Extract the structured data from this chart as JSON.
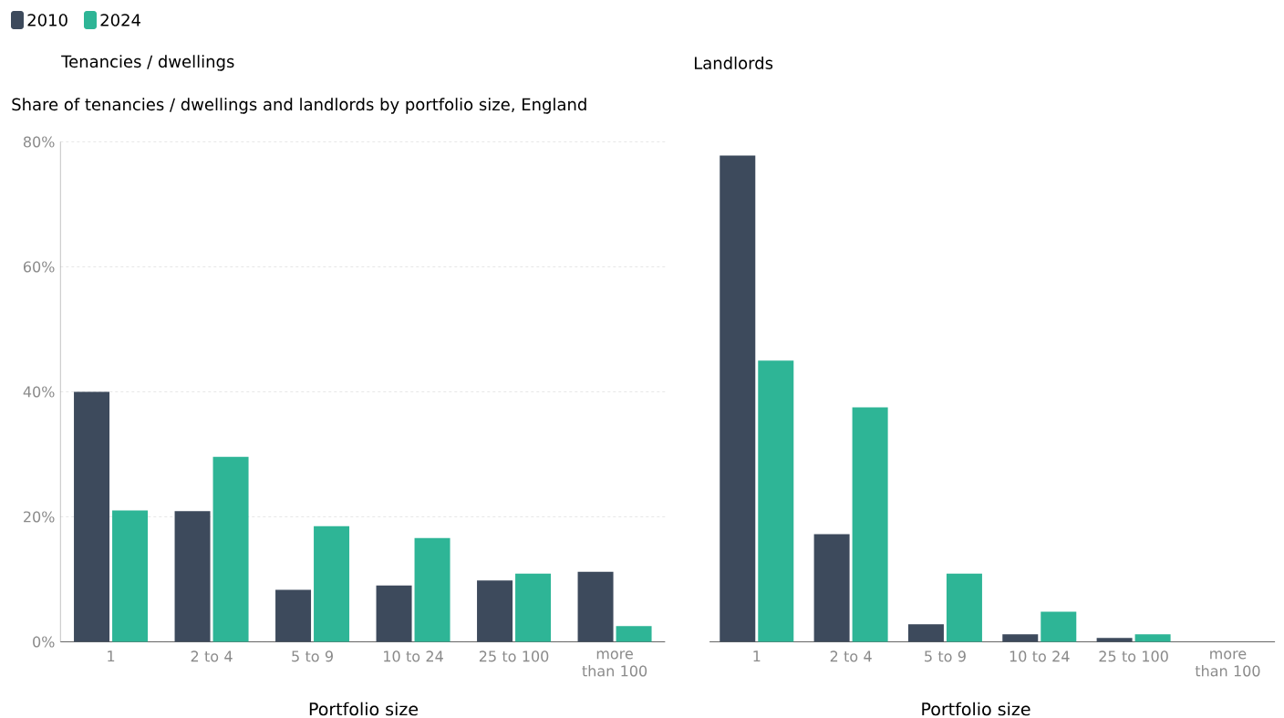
{
  "chart_data": [
    {
      "type": "bar",
      "title": "Tenancies / dwellings",
      "subtitle": "Share of tenancies / dwellings and landlords by portfolio size, England",
      "xlabel": "Portfolio size",
      "categories": [
        "1",
        "2 to 4",
        "5 to 9",
        "10 to 24",
        "25 to 100",
        "more than 100"
      ],
      "series": [
        {
          "name": "2010",
          "color": "#3d4a5c",
          "values": [
            40.0,
            20.9,
            8.3,
            9.0,
            9.8,
            11.2
          ]
        },
        {
          "name": "2024",
          "color": "#2eb596",
          "values": [
            21.0,
            29.6,
            18.5,
            16.6,
            10.9,
            2.5
          ]
        }
      ],
      "ylim": [
        0,
        80
      ],
      "yticks": [
        {
          "value": 0,
          "label": "0%"
        },
        {
          "value": 20,
          "label": "20%"
        },
        {
          "value": 40,
          "label": "40%"
        },
        {
          "value": 60,
          "label": "60%"
        },
        {
          "value": 80,
          "label": "80%"
        }
      ],
      "grid": "y",
      "legend": "top left"
    },
    {
      "type": "bar",
      "title": "Landlords",
      "xlabel": "Portfolio size",
      "categories": [
        "1",
        "2 to 4",
        "5 to 9",
        "10 to 24",
        "25 to 100",
        "more than 100"
      ],
      "series": [
        {
          "color": "#3d4a5c",
          "values": [
            77.8,
            17.2,
            2.8,
            1.2,
            0.6,
            null
          ]
        },
        {
          "color": "#2eb596",
          "values": [
            45.0,
            37.5,
            10.9,
            4.8,
            1.2,
            null
          ]
        }
      ],
      "ylim": [
        0,
        80
      ],
      "yticks": [
        {
          "value": 0,
          "label": null
        },
        {
          "value": 20,
          "label": null
        },
        {
          "value": 40,
          "label": null
        },
        {
          "value": 60,
          "label": null
        },
        {
          "value": 80,
          "label": null
        }
      ],
      "grid": "y",
      "tick_labels": "x"
    }
  ]
}
